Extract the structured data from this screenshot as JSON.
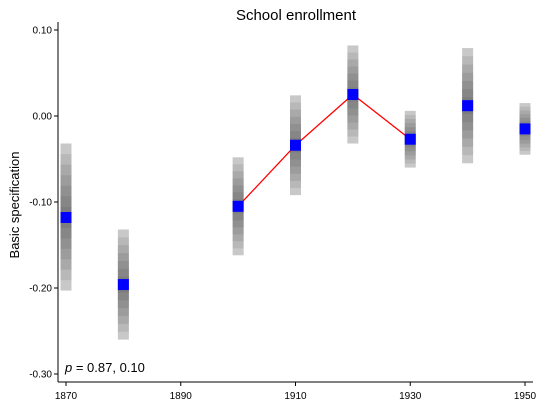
{
  "chart_data": {
    "type": "scatter",
    "title": "School enrollment",
    "xlabel": "",
    "ylabel": "Basic specification",
    "xlim": [
      1869,
      1951
    ],
    "ylim": [
      -0.3,
      0.11
    ],
    "xticks": [
      1870,
      1890,
      1910,
      1930,
      1950
    ],
    "yticks": [
      0.1,
      0.0,
      -0.1,
      -0.2,
      -0.3
    ],
    "ytick_labels": [
      "0.10",
      "0.00",
      "-0.10",
      "-0.20",
      "-0.30"
    ],
    "annotation": {
      "prefix": "p",
      "text": " = 0.87, 0.10"
    },
    "grid": false,
    "points": [
      {
        "x": 1870,
        "y": -0.118,
        "ci_low": -0.203,
        "ci_high": -0.032
      },
      {
        "x": 1880,
        "y": -0.196,
        "ci_low": -0.26,
        "ci_high": -0.132
      },
      {
        "x": 1900,
        "y": -0.105,
        "ci_low": -0.162,
        "ci_high": -0.048
      },
      {
        "x": 1910,
        "y": -0.034,
        "ci_low": -0.092,
        "ci_high": 0.024
      },
      {
        "x": 1920,
        "y": 0.025,
        "ci_low": -0.032,
        "ci_high": 0.082
      },
      {
        "x": 1930,
        "y": -0.027,
        "ci_low": -0.06,
        "ci_high": 0.006
      },
      {
        "x": 1940,
        "y": 0.012,
        "ci_low": -0.055,
        "ci_high": 0.079
      },
      {
        "x": 1950,
        "y": -0.015,
        "ci_low": -0.045,
        "ci_high": 0.015
      }
    ],
    "connected_x": [
      1900,
      1910,
      1920,
      1930
    ],
    "colors": {
      "point": "#0000ff",
      "line": "#ff0000",
      "band_outer": "#cccccc",
      "band_inner": "#555555"
    }
  }
}
